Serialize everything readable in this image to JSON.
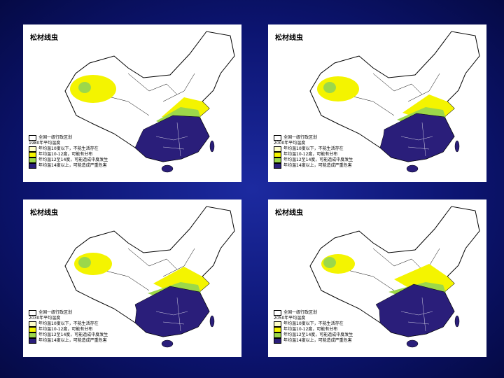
{
  "panels": [
    {
      "title": "松材线虫",
      "legend": {
        "heading": "全国一级行政区划",
        "subheading": "1980年平均温度",
        "items": [
          "年均温10度以下，不能生活存在",
          "年均温10-12度，可能有分布",
          "年均温12至14度，可能造成中度发生",
          "年均温14度以上，可能造成严重危害"
        ]
      }
    },
    {
      "title": "松材线虫",
      "legend": {
        "heading": "全国一级行政区划",
        "subheading": "2000年平均温度",
        "items": [
          "年均温10度以下，不能生活存在",
          "年均温10-12度，可能有分布",
          "年均温12至14度，可能造成中度发生",
          "年均温14度以上，可能造成严重危害"
        ]
      }
    },
    {
      "title": "松材线虫",
      "legend": {
        "heading": "全国一级行政区划",
        "subheading": "2030年平均温度",
        "items": [
          "年均温10度以下，不能生活存在",
          "年均温10-12度，可能有分布",
          "年均温12至14度，可能造成中度发生",
          "年均温14度以上，可能造成严重危害"
        ]
      }
    },
    {
      "title": "松材线虫",
      "legend": {
        "heading": "全国一级行政区划",
        "subheading": "2050年平均温度",
        "items": [
          "年均温10度以下，不能生活存在",
          "年均温10-12度，可能有分布",
          "年均温12至14度，可能造成中度发生",
          "年均温14度以上，可能造成严重危害"
        ]
      }
    }
  ]
}
